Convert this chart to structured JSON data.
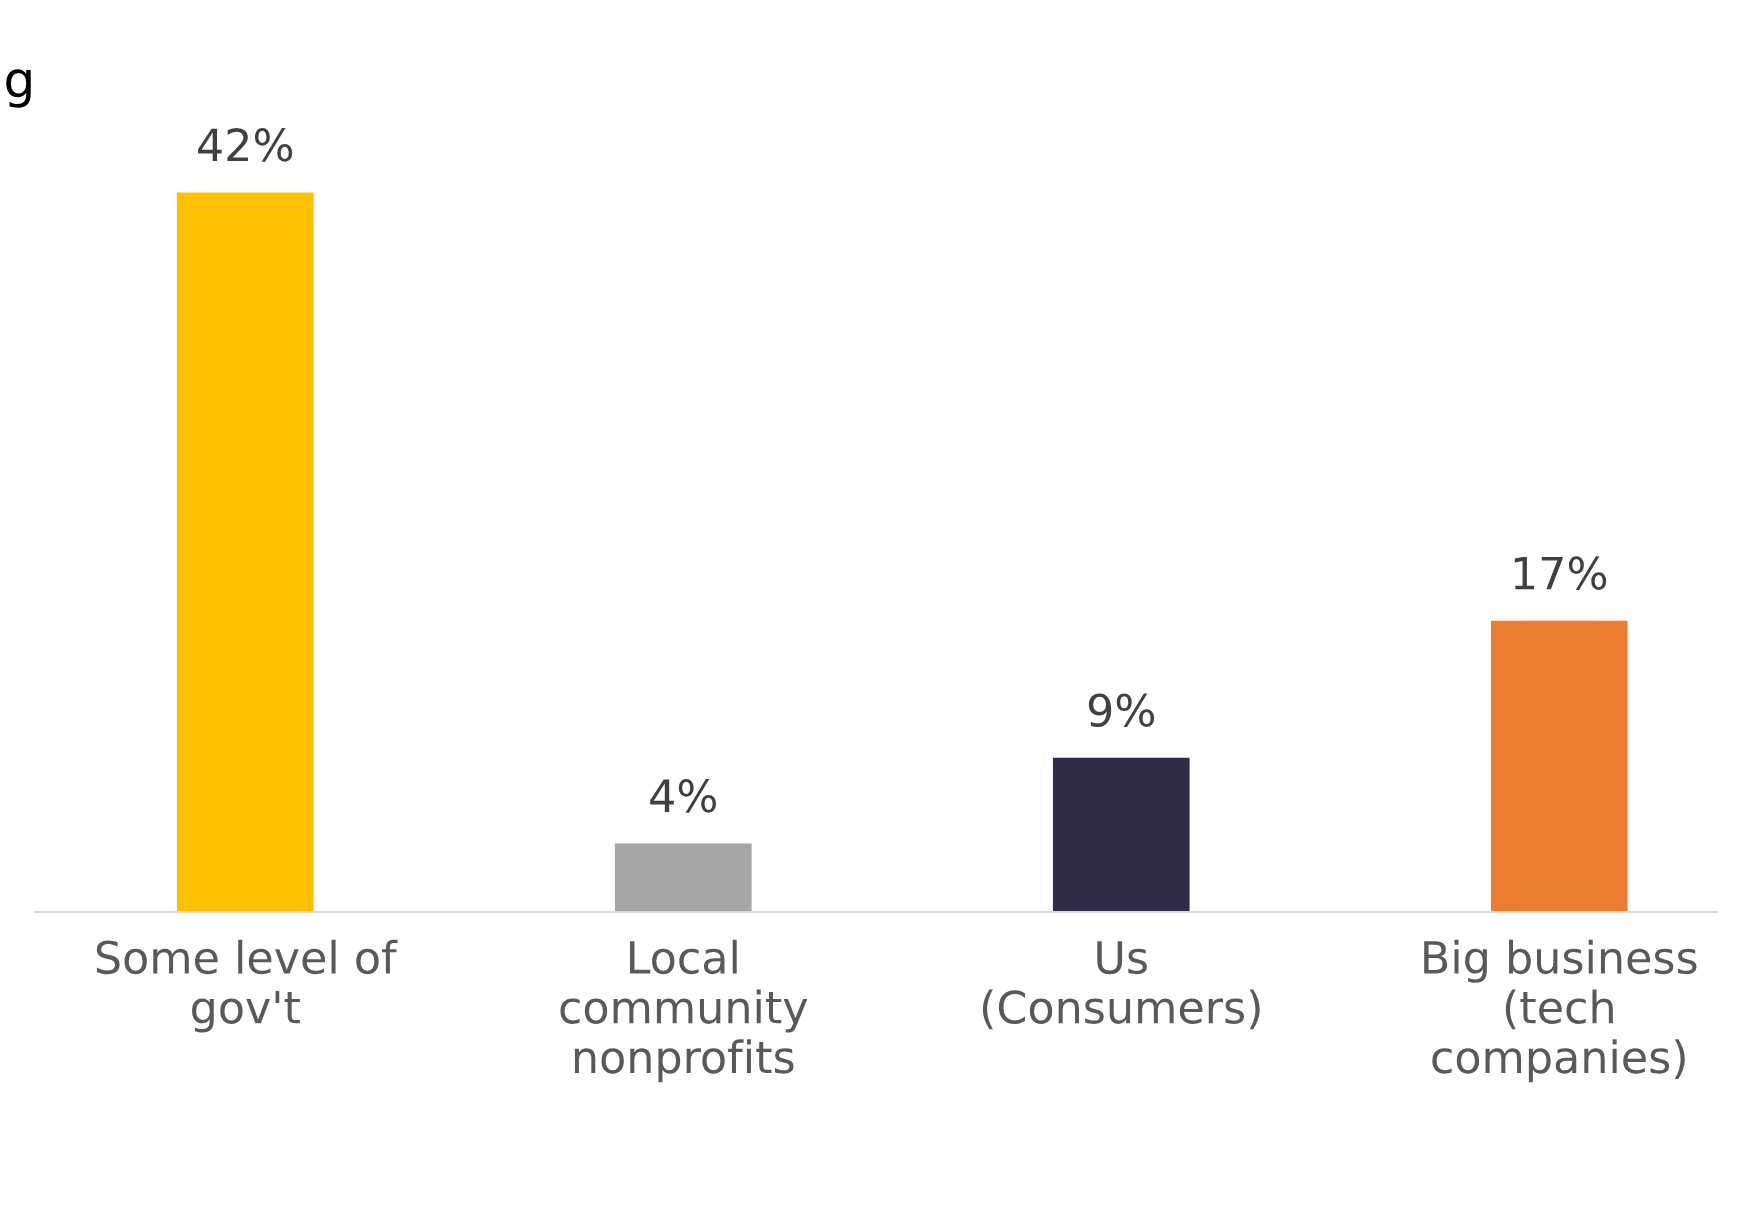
{
  "chart_data": {
    "type": "bar",
    "categories": [
      "Some level of\ngov't",
      "Local\ncommunity\nnonprofits",
      "Us\n(Consumers)",
      "Big business\n(tech\ncompanies)"
    ],
    "values": [
      42,
      4,
      9,
      17
    ],
    "colors": [
      "#ffc000",
      "#a5a5a5",
      "#2e2d45",
      "#ed7d31"
    ],
    "value_labels": [
      "42%",
      "4%",
      "9%",
      "17%"
    ],
    "annotations": [
      "g"
    ],
    "grid": false,
    "legend": false
  }
}
